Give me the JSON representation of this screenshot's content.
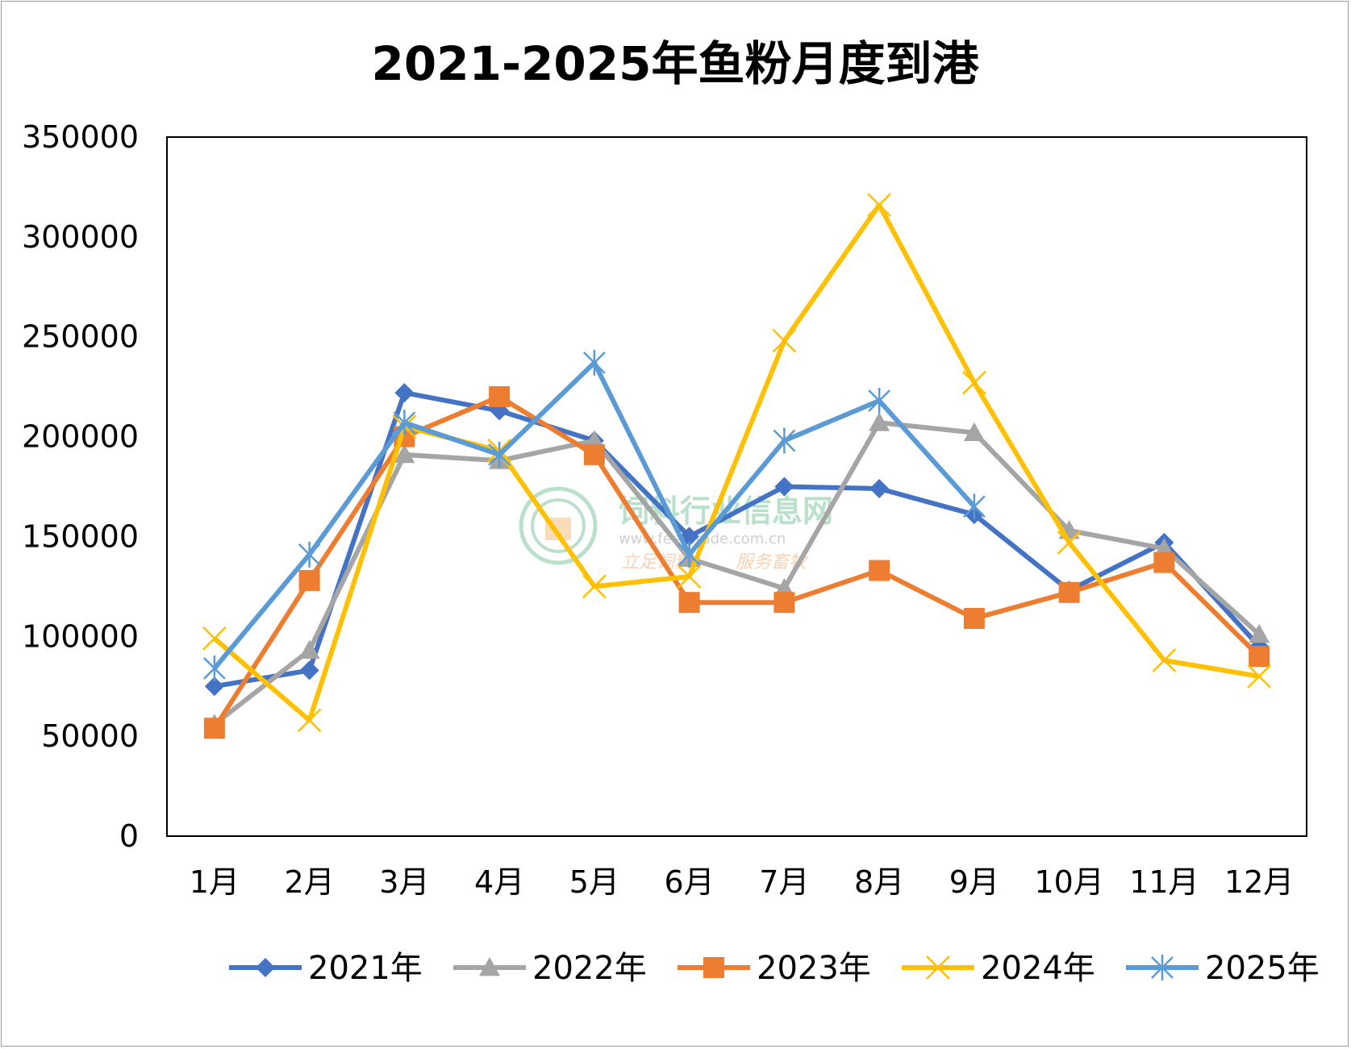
{
  "chart_data": {
    "type": "line",
    "title": "2021-2025年鱼粉月度到港",
    "xlabel": "",
    "ylabel": "",
    "categories": [
      "1月",
      "2月",
      "3月",
      "4月",
      "5月",
      "6月",
      "7月",
      "8月",
      "9月",
      "10月",
      "11月",
      "12月"
    ],
    "ylim": [
      0,
      350000
    ],
    "yticks": [
      0,
      50000,
      100000,
      150000,
      200000,
      250000,
      300000,
      350000
    ],
    "ytick_labels": [
      "0",
      "50000",
      "100000",
      "150000",
      "200000",
      "250000",
      "300000",
      "350000"
    ],
    "grid": false,
    "legend_position": "bottom",
    "series": [
      {
        "name": "2021年",
        "color": "#4472C4",
        "marker": "diamond",
        "values": [
          75000,
          83000,
          222000,
          213000,
          198000,
          150000,
          175000,
          174000,
          161000,
          123000,
          147000,
          95000
        ]
      },
      {
        "name": "2022年",
        "color": "#A5A5A5",
        "marker": "triangle",
        "values": [
          56000,
          93000,
          191000,
          188000,
          198000,
          139000,
          124000,
          207000,
          202000,
          153000,
          144000,
          101000
        ]
      },
      {
        "name": "2023年",
        "color": "#ED7D31",
        "marker": "square",
        "values": [
          54000,
          128000,
          200000,
          220000,
          191000,
          117000,
          117000,
          133000,
          109000,
          122000,
          137000,
          90000
        ]
      },
      {
        "name": "2024年",
        "color": "#FFC000",
        "marker": "x",
        "values": [
          99000,
          58000,
          205000,
          193000,
          125000,
          130000,
          248000,
          316000,
          227000,
          147000,
          88000,
          80000
        ]
      },
      {
        "name": "2025年",
        "color": "#5B9BD5",
        "marker": "star",
        "values": [
          84000,
          141000,
          207000,
          191000,
          237000,
          141000,
          198000,
          218000,
          165000,
          null,
          null,
          null
        ]
      }
    ]
  },
  "watermark": {
    "name": "饲料行业信息网",
    "url": "www.feedtrade.com.cn",
    "slogan_left": "立足饲料",
    "slogan_right": "服务畜牧"
  }
}
